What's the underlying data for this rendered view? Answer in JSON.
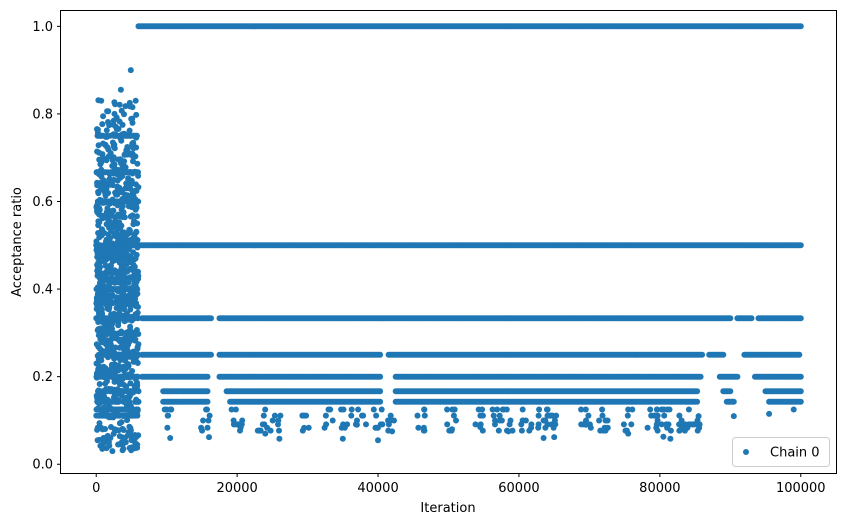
{
  "chart_data": {
    "type": "scatter",
    "title": "",
    "xlabel": "Iteration",
    "ylabel": "Acceptance ratio",
    "xlim": [
      -5000,
      105000
    ],
    "ylim": [
      -0.02,
      1.035
    ],
    "xticks": [
      0,
      20000,
      40000,
      60000,
      80000,
      100000
    ],
    "xtick_labels": [
      "0",
      "20000",
      "40000",
      "60000",
      "80000",
      "100000"
    ],
    "yticks": [
      0.0,
      0.2,
      0.4,
      0.6,
      0.8,
      1.0
    ],
    "ytick_labels": [
      "0.0",
      "0.2",
      "0.4",
      "0.6",
      "0.8",
      "1.0"
    ],
    "grid": false,
    "legend": {
      "position": "bottom-right",
      "entries": [
        "Chain 0"
      ]
    },
    "marker_color": "#1f77b4",
    "series": [
      {
        "name": "Chain 0",
        "description_of_pattern": "burn-in 0-6000 dense spread 0.03-0.90; after ~6000 values quantized at discrete levels",
        "burn_in": {
          "x_range": [
            0,
            6000
          ],
          "y_range": [
            0.03,
            0.9
          ]
        },
        "bands": [
          {
            "y": 1.0,
            "segments": [
              [
                6000,
                100000
              ]
            ]
          },
          {
            "y": 0.5,
            "segments": [
              [
                6000,
                100000
              ]
            ]
          },
          {
            "y": 0.3333,
            "segments": [
              [
                6500,
                16500
              ],
              [
                17500,
                90000
              ],
              [
                91000,
                93000
              ],
              [
                94000,
                100000
              ]
            ]
          },
          {
            "y": 0.25,
            "segments": [
              [
                6500,
                16500
              ],
              [
                17500,
                40500
              ],
              [
                41500,
                86000
              ],
              [
                87000,
                89000
              ],
              [
                92000,
                100000
              ]
            ]
          },
          {
            "y": 0.2,
            "segments": [
              [
                6500,
                16000
              ],
              [
                17500,
                40500
              ],
              [
                42500,
                86000
              ],
              [
                88500,
                91000
              ],
              [
                93500,
                100000
              ]
            ]
          },
          {
            "y": 0.1667,
            "segments": [
              [
                9500,
                16000
              ],
              [
                18500,
                40500
              ],
              [
                42500,
                85500
              ],
              [
                89000,
                90000
              ],
              [
                95000,
                100000
              ]
            ]
          },
          {
            "y": 0.1429,
            "segments": [
              [
                9500,
                16000
              ],
              [
                19000,
                40500
              ],
              [
                42500,
                85500
              ],
              [
                89500,
                90500
              ],
              [
                95500,
                100000
              ]
            ]
          }
        ],
        "sparse_low_points": [
          [
            10500,
            0.06
          ],
          [
            16000,
            0.062
          ],
          [
            20500,
            0.085
          ],
          [
            24000,
            0.07
          ],
          [
            26000,
            0.058
          ],
          [
            29500,
            0.083
          ],
          [
            35000,
            0.058
          ],
          [
            37000,
            0.09
          ],
          [
            40000,
            0.055
          ],
          [
            42000,
            0.075
          ],
          [
            50500,
            0.08
          ],
          [
            54500,
            0.085
          ],
          [
            58500,
            0.075
          ],
          [
            63500,
            0.06
          ],
          [
            65000,
            0.062
          ],
          [
            69500,
            0.09
          ],
          [
            75500,
            0.07
          ],
          [
            80500,
            0.063
          ],
          [
            81500,
            0.058
          ],
          [
            85500,
            0.11
          ],
          [
            90500,
            0.11
          ],
          [
            95500,
            0.115
          ],
          [
            99000,
            0.125
          ]
        ]
      }
    ]
  }
}
